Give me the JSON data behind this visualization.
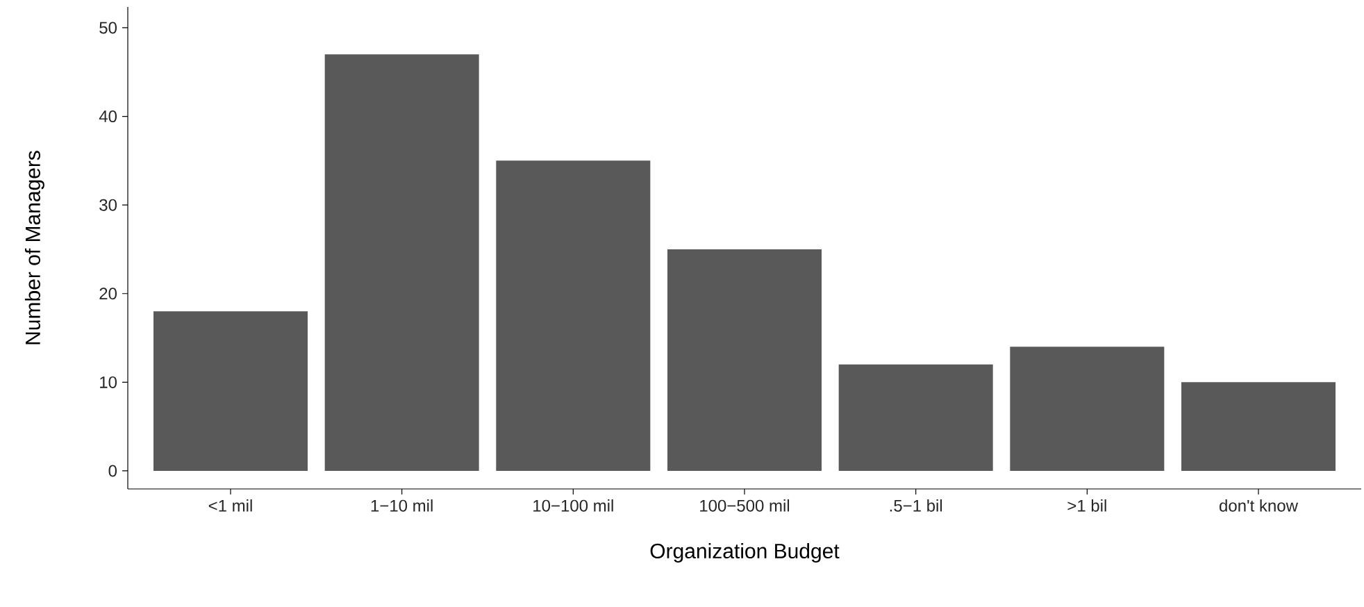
{
  "chart_data": {
    "type": "bar",
    "xlabel": "Organization Budget",
    "ylabel": "Number of Managers",
    "categories": [
      "<1 mil",
      "1−10 mil",
      "10−100 mil",
      "100−500 mil",
      ".5−1 bil",
      ">1 bil",
      "don't know"
    ],
    "values": [
      18,
      47,
      35,
      25,
      12,
      14,
      10
    ],
    "color": "#595959",
    "ylim": [
      -2.04,
      52.35
    ],
    "yticks": [
      0,
      10,
      20,
      30,
      40,
      50
    ],
    "grid": false
  }
}
